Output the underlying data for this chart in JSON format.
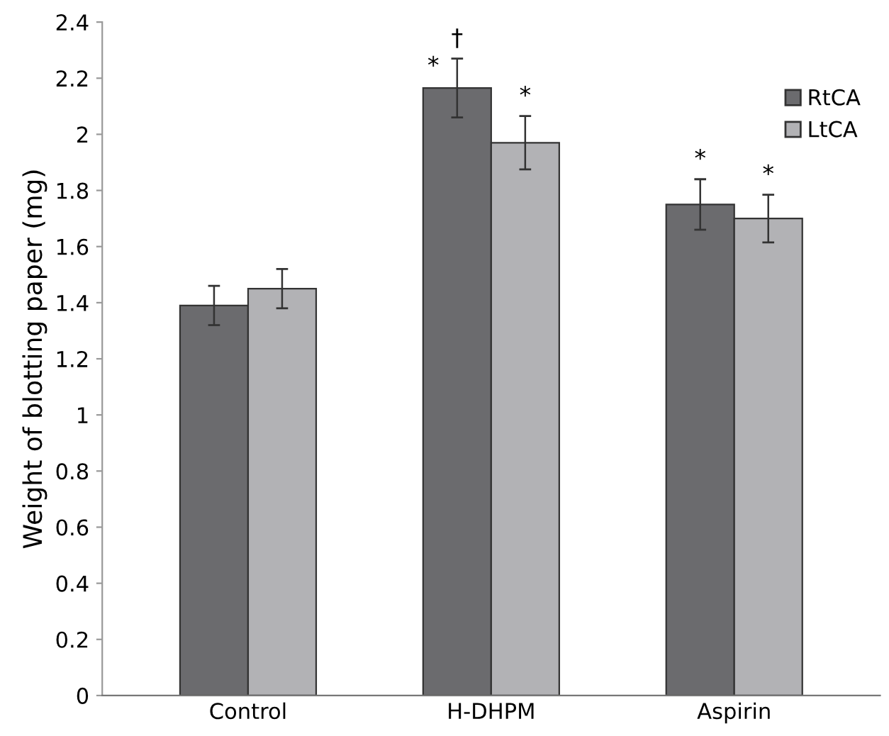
{
  "chart_data": {
    "type": "bar",
    "ylabel": "Weight of blotting paper (mg)",
    "categories": [
      "Control",
      "H-DHPM",
      "Aspirin"
    ],
    "series": [
      {
        "name": "RtCA",
        "color": "#6b6b6e",
        "values": [
          1.39,
          2.165,
          1.75
        ],
        "errors": [
          0.07,
          0.105,
          0.09
        ]
      },
      {
        "name": "LtCA",
        "color": "#b2b2b5",
        "values": [
          1.45,
          1.97,
          1.7
        ],
        "errors": [
          0.07,
          0.095,
          0.085
        ]
      }
    ],
    "ylim": [
      0,
      2.4
    ],
    "yticks": [
      0,
      0.2,
      0.4,
      0.6,
      0.8,
      1,
      1.2,
      1.4,
      1.6,
      1.8,
      2,
      2.2,
      2.4
    ],
    "grid": false,
    "legend": "top right",
    "annotations": [
      "*",
      "†",
      "*",
      "*",
      "*"
    ]
  }
}
